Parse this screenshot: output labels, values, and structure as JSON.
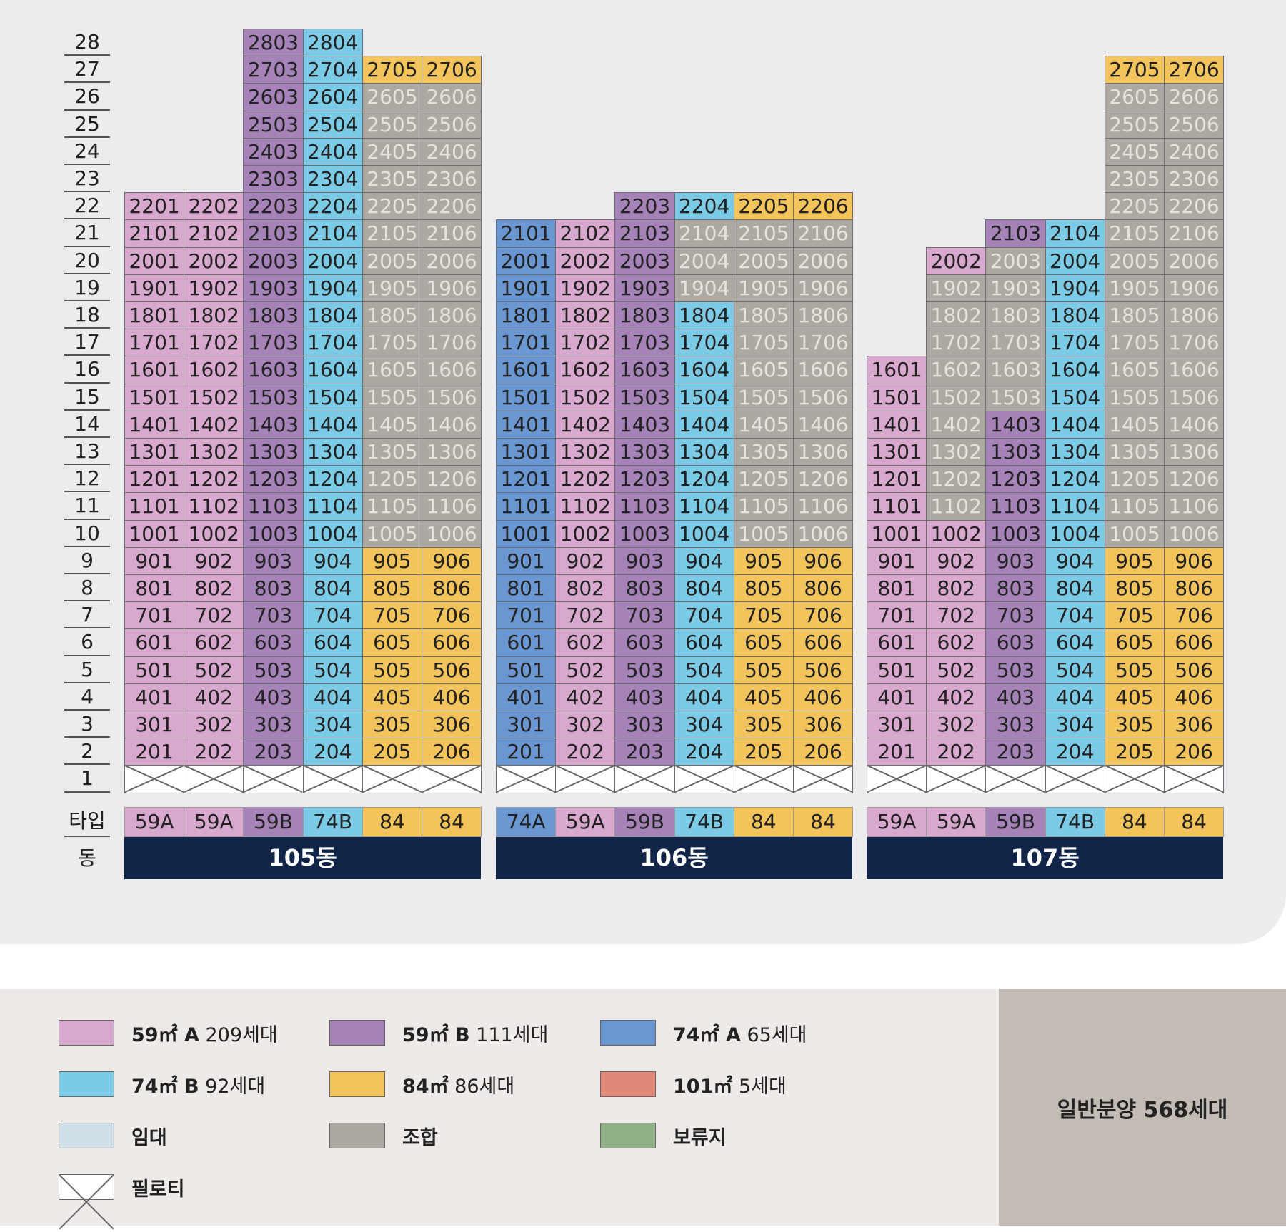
{
  "row_labels": {
    "type": "타입",
    "building": "동"
  },
  "floors": [
    28,
    27,
    26,
    25,
    24,
    23,
    22,
    21,
    20,
    19,
    18,
    17,
    16,
    15,
    14,
    13,
    12,
    11,
    10,
    9,
    8,
    7,
    6,
    5,
    4,
    3,
    2,
    1
  ],
  "type_colors": {
    "59A": "#d9a8cf",
    "59B": "#a582b8",
    "74A": "#6a97d1",
    "74B": "#7ccbe6",
    "84": "#f3c45b",
    "101": "#e08878",
    "rent": "#cfdee7",
    "union": "#aea8a3",
    "reserve": "#8fb086"
  },
  "buildings": [
    {
      "name": "105동",
      "lines": [
        {
          "type": "59A",
          "top_floor": 22,
          "union_from": null,
          "overrides": {}
        },
        {
          "type": "59A",
          "top_floor": 22,
          "union_from": null,
          "overrides": {}
        },
        {
          "type": "59B",
          "top_floor": 28,
          "union_from": null,
          "overrides": {}
        },
        {
          "type": "74B",
          "top_floor": 28,
          "union_from": null,
          "overrides": {}
        },
        {
          "type": "84",
          "top_floor": 27,
          "union_from": 10,
          "overrides": {
            "27": "84"
          }
        },
        {
          "type": "84",
          "top_floor": 27,
          "union_from": 10,
          "overrides": {
            "27": "84"
          }
        }
      ]
    },
    {
      "name": "106동",
      "lines": [
        {
          "type": "74A",
          "top_floor": 21,
          "union_from": null,
          "overrides": {}
        },
        {
          "type": "59A",
          "top_floor": 21,
          "union_from": null,
          "overrides": {}
        },
        {
          "type": "59B",
          "top_floor": 22,
          "union_from": null,
          "overrides": {}
        },
        {
          "type": "74B",
          "top_floor": 22,
          "union_from": null,
          "overrides": {
            "19": "union",
            "20": "union",
            "21": "union"
          }
        },
        {
          "type": "84",
          "top_floor": 22,
          "union_from": 10,
          "overrides": {
            "22": "84"
          }
        },
        {
          "type": "84",
          "top_floor": 22,
          "union_from": 10,
          "overrides": {
            "22": "84"
          }
        }
      ]
    },
    {
      "name": "107동",
      "lines": [
        {
          "type": "59A",
          "top_floor": 16,
          "union_from": null,
          "overrides": {}
        },
        {
          "type": "59A",
          "top_floor": 20,
          "union_from": 11,
          "overrides": {
            "20": "59A"
          }
        },
        {
          "type": "59B",
          "top_floor": 21,
          "union_from": 15,
          "overrides": {
            "21": "59B"
          }
        },
        {
          "type": "74B",
          "top_floor": 21,
          "union_from": null,
          "overrides": {}
        },
        {
          "type": "84",
          "top_floor": 27,
          "union_from": 10,
          "overrides": {
            "27": "84"
          }
        },
        {
          "type": "84",
          "top_floor": 27,
          "union_from": 10,
          "overrides": {
            "27": "84"
          }
        }
      ]
    }
  ],
  "type_labels": [
    [
      "59A",
      "59A",
      "59B",
      "74B",
      "84",
      "84"
    ],
    [
      "74A",
      "59A",
      "59B",
      "74B",
      "84",
      "84"
    ],
    [
      "59A",
      "59A",
      "59B",
      "74B",
      "84",
      "84"
    ]
  ],
  "legend": [
    {
      "key": "59A",
      "bold": "59㎡ A",
      "rest": " 209세대"
    },
    {
      "key": "59B",
      "bold": "59㎡ B",
      "rest": " 111세대"
    },
    {
      "key": "74A",
      "bold": "74㎡ A",
      "rest": " 65세대"
    },
    {
      "key": "74B",
      "bold": "74㎡ B",
      "rest": " 92세대"
    },
    {
      "key": "84",
      "bold": "84㎡",
      "rest": " 86세대"
    },
    {
      "key": "101",
      "bold": "101㎡",
      "rest": " 5세대"
    },
    {
      "key": "rent",
      "bold": "임대",
      "rest": ""
    },
    {
      "key": "union",
      "bold": "조합",
      "rest": ""
    },
    {
      "key": "reserve",
      "bold": "보류지",
      "rest": ""
    },
    {
      "key": "piloti",
      "bold": "필로티",
      "rest": ""
    }
  ],
  "summary": "일반분양 568세대"
}
